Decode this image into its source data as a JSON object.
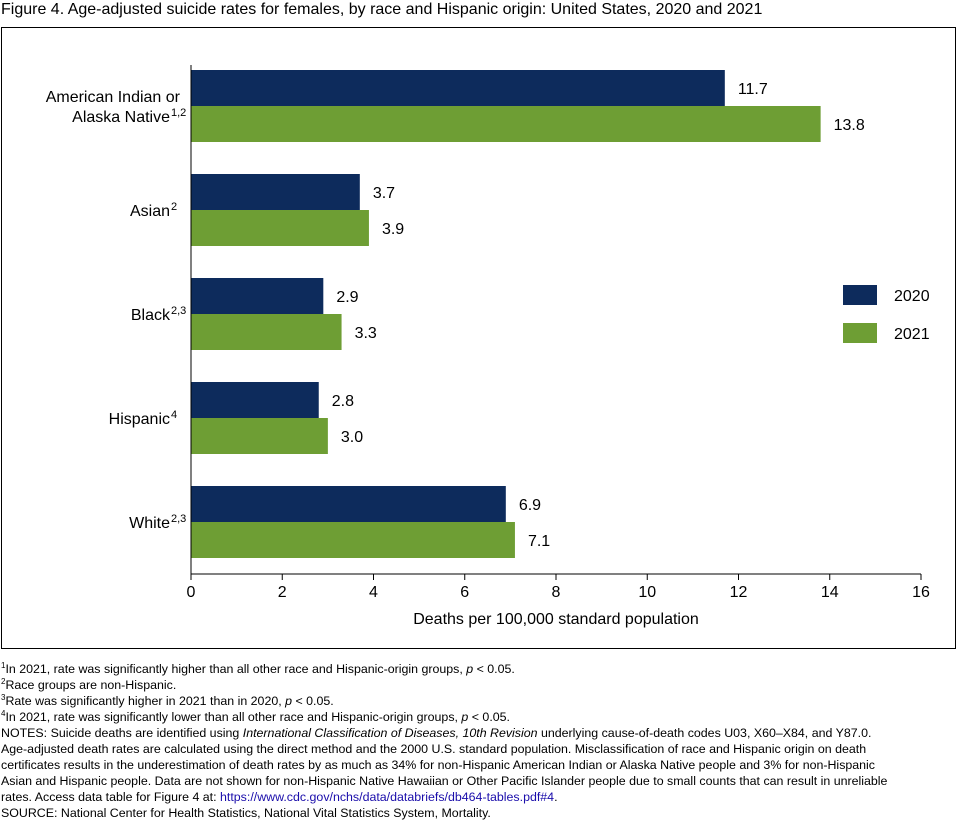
{
  "title": "Figure 4. Age-adjusted suicide rates for females, by race and Hispanic origin: United States, 2020 and 2021",
  "chart_data": {
    "type": "bar",
    "orientation": "horizontal",
    "categories": [
      {
        "lines": [
          "American Indian or",
          "Alaska Native"
        ],
        "sup": "1,2"
      },
      {
        "lines": [
          "Asian"
        ],
        "sup": "2"
      },
      {
        "lines": [
          "Black"
        ],
        "sup": "2,3"
      },
      {
        "lines": [
          "Hispanic"
        ],
        "sup": "4"
      },
      {
        "lines": [
          "White"
        ],
        "sup": "2,3"
      }
    ],
    "series": [
      {
        "name": "2020",
        "color": "#0d2b5c",
        "values": [
          11.7,
          3.7,
          2.9,
          2.8,
          6.9
        ],
        "labels": [
          "11.7",
          "3.7",
          "2.9",
          "2.8",
          "6.9"
        ]
      },
      {
        "name": "2021",
        "color": "#6e9e34",
        "values": [
          13.8,
          3.9,
          3.3,
          3.0,
          7.1
        ],
        "labels": [
          "13.8",
          "3.9",
          "3.3",
          "3.0",
          "7.1"
        ]
      }
    ],
    "xlabel": "Deaths per 100,000 standard population",
    "ylabel": "",
    "xlim": [
      0,
      16
    ],
    "xticks": [
      "0",
      "2",
      "4",
      "6",
      "8",
      "10",
      "12",
      "14",
      "16"
    ],
    "grid": false,
    "legend_position": "right"
  },
  "notes": {
    "fn1": {
      "sup": "1",
      "text": "In 2021, rate was significantly higher than all other race and Hispanic-origin groups, ",
      "p": "p",
      "tail": " < 0.05."
    },
    "fn2": {
      "sup": "2",
      "text": "Race groups are non-Hispanic."
    },
    "fn3": {
      "sup": "3",
      "text": "Rate was significantly higher in 2021 than in 2020, ",
      "p": "p",
      "tail": " < 0.05."
    },
    "fn4": {
      "sup": "4",
      "text": "In 2021, rate was significantly lower than all other race and Hispanic-origin groups, ",
      "p": "p",
      "tail": " < 0.05."
    },
    "notes_a": "NOTES: Suicide deaths are identified using ",
    "notes_icd": "International Classification of Diseases, 10th Revision",
    "notes_b": " underlying cause-of-death codes U03, X60–X84, and Y87.0.",
    "line2": "Age-adjusted death rates are calculated using the direct method and the 2000 U.S. standard population. Misclassification of race and Hispanic origin on death",
    "line3": "certificates results in the underestimation of death rates by as much as 34% for non-Hispanic American Indian or Alaska Native people and 3% for non-Hispanic",
    "line4": "Asian and Hispanic people. Data are not shown for non-Hispanic Native Hawaiian or Other Pacific Islander people due to small counts that can result in unreliable",
    "line5_a": "rates. Access data table for Figure 4 at: ",
    "line5_link": "https://www.cdc.gov/nchs/data/databriefs/db464-tables.pdf#4",
    "line5_b": ".",
    "source": "SOURCE: National Center for Health Statistics, National Vital Statistics System, Mortality."
  }
}
